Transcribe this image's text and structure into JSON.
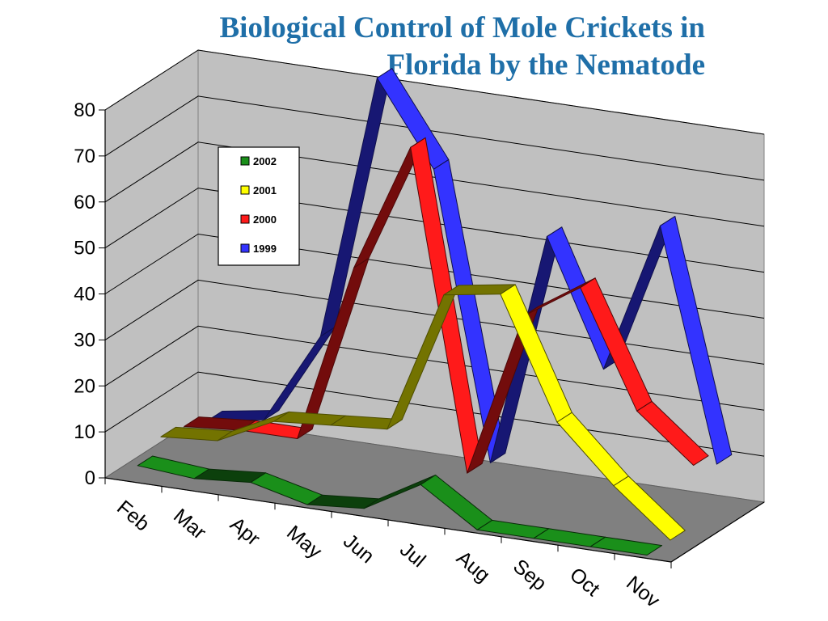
{
  "chart_data": {
    "type": "line",
    "title": [
      "Biological Control of Mole Crickets in",
      "Florida by the Nematode"
    ],
    "categories": [
      "Feb",
      "Mar",
      "Apr",
      "May",
      "Jun",
      "Jul",
      "Aug",
      "Sep",
      "Oct",
      "Nov"
    ],
    "ylim": [
      0,
      80
    ],
    "yticks": [
      "0",
      "10",
      "20",
      "30",
      "40",
      "50",
      "60",
      "70",
      "80"
    ],
    "grid": true,
    "legend_position": "top-left",
    "series": [
      {
        "name": "2002",
        "color": "#1a8f1a",
        "values": [
          3,
          2,
          3,
          0,
          1,
          8,
          0,
          0,
          0,
          0
        ]
      },
      {
        "name": "2001",
        "color": "#ffff00",
        "values": [
          6,
          7,
          13,
          14,
          15,
          46,
          48,
          22,
          10,
          0
        ]
      },
      {
        "name": "2000",
        "color": "#ff1a1a",
        "values": [
          5,
          6,
          6,
          45,
          73,
          4,
          40,
          48,
          23,
          13
        ]
      },
      {
        "name": "1999",
        "color": "#3333ff",
        "values": [
          3,
          5,
          25,
          83,
          65,
          3,
          54,
          27,
          60,
          10
        ]
      }
    ]
  }
}
